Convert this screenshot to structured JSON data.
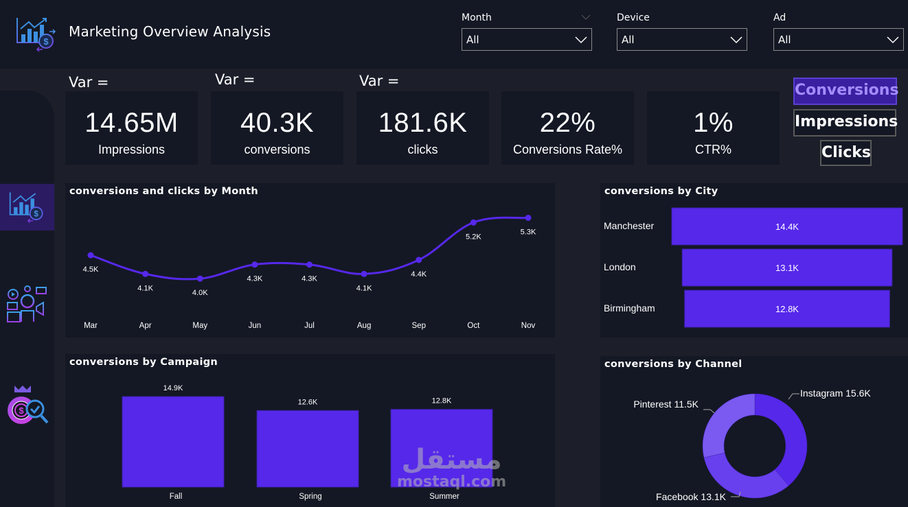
{
  "header": {
    "title": "Marketing Overview Analysis",
    "logo_icon": "chart-dollar-icon"
  },
  "filters": [
    {
      "label": "Month",
      "value": "All"
    },
    {
      "label": "Device",
      "value": "All"
    },
    {
      "label": "Ad",
      "value": "All"
    }
  ],
  "sidebar": {
    "items": [
      {
        "icon": "chart-dollar-icon",
        "active": true
      },
      {
        "icon": "marketing-people-icon",
        "active": false
      },
      {
        "icon": "money-bag-search-icon",
        "active": false
      }
    ]
  },
  "var_labels": [
    "Var =",
    "Var =",
    "Var ="
  ],
  "kpis": [
    {
      "value": "14.65M",
      "label": "Impressions"
    },
    {
      "value": "40.3K",
      "label": "conversions"
    },
    {
      "value": "181.6K",
      "label": "clicks"
    },
    {
      "value": "22%",
      "label": "Conversions Rate%"
    },
    {
      "value": "1%",
      "label": "CTR%"
    }
  ],
  "toggles": [
    {
      "label": "Conversions",
      "active": true
    },
    {
      "label": "Impressions",
      "active": false
    },
    {
      "label": "Clicks",
      "active": false
    }
  ],
  "colors": {
    "accent": "#5628ea",
    "accent_light": "#7a5af0",
    "accent_mid": "#6840ee",
    "panel": "#141824",
    "background": "#1c1f2a"
  },
  "watermark": {
    "arabic": "مستقل",
    "latin": "mostaql.com"
  },
  "chart_data": [
    {
      "id": "monthly",
      "type": "line",
      "title": "conversions and clicks by Month",
      "categories": [
        "Mar",
        "Apr",
        "May",
        "Jun",
        "Jul",
        "Aug",
        "Sep",
        "Oct",
        "Nov"
      ],
      "values": [
        4.5,
        4.1,
        4.0,
        4.3,
        4.3,
        4.1,
        4.4,
        5.2,
        5.3
      ],
      "labels": [
        "4.5K",
        "4.1K",
        "4.0K",
        "4.3K",
        "4.3K",
        "4.1K",
        "4.4K",
        "5.2K",
        "5.3K"
      ],
      "unit": "K",
      "ylim": [
        3.4,
        5.6
      ],
      "grid": false
    },
    {
      "id": "city",
      "type": "bar",
      "orientation": "horizontal",
      "title": "conversions by City",
      "categories": [
        "Manchester",
        "London",
        "Birmingham"
      ],
      "values": [
        14.4,
        13.1,
        12.8
      ],
      "labels": [
        "14.4K",
        "13.1K",
        "12.8K"
      ],
      "unit": "K"
    },
    {
      "id": "campaign",
      "type": "bar",
      "title": "conversions by Campaign",
      "categories": [
        "Fall",
        "Spring",
        "Summer"
      ],
      "values": [
        14.9,
        12.6,
        12.8
      ],
      "labels": [
        "14.9K",
        "12.6K",
        "12.8K"
      ],
      "unit": "K",
      "ylim": [
        0,
        14.9
      ]
    },
    {
      "id": "channel",
      "type": "pie",
      "donut": true,
      "title": "conversions by Channel",
      "categories": [
        "Instagram",
        "Facebook",
        "Pinterest"
      ],
      "values": [
        15.6,
        13.1,
        11.5
      ],
      "labels": [
        "Instagram 15.6K",
        "Facebook 13.1K",
        "Pinterest 11.5K"
      ],
      "colors": [
        "#5628ea",
        "#6840ee",
        "#7a5af0"
      ],
      "unit": "K"
    }
  ]
}
